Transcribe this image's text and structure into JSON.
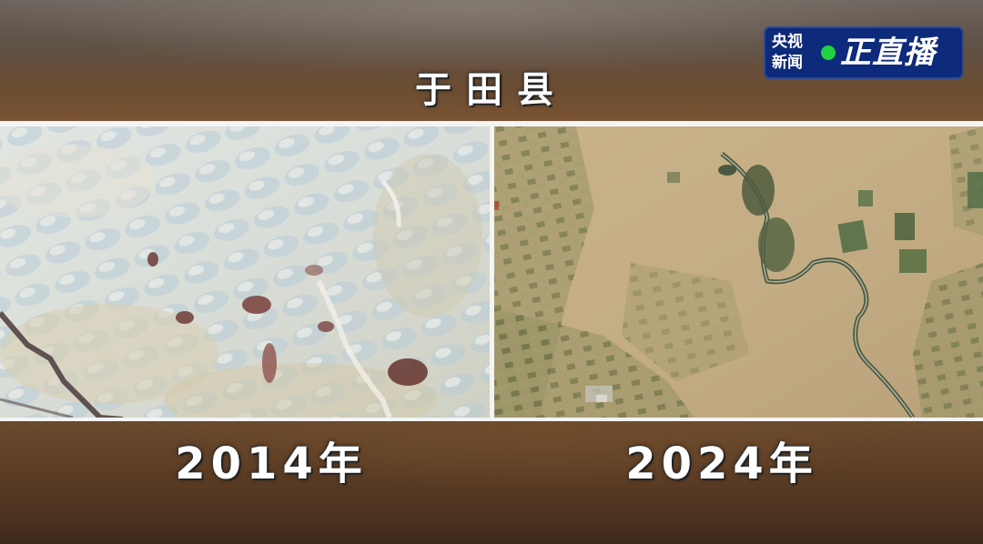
{
  "title": "于田县",
  "logo": {
    "small_line1": "央视",
    "small_line2": "新闻",
    "big_text": "正直播",
    "dot_color": "#21d243",
    "background_color": "#0e2a7a"
  },
  "panels": [
    {
      "year_label": "2014年",
      "image": "satellite-desert-2014"
    },
    {
      "year_label": "2024年",
      "image": "satellite-farmland-2024"
    }
  ]
}
